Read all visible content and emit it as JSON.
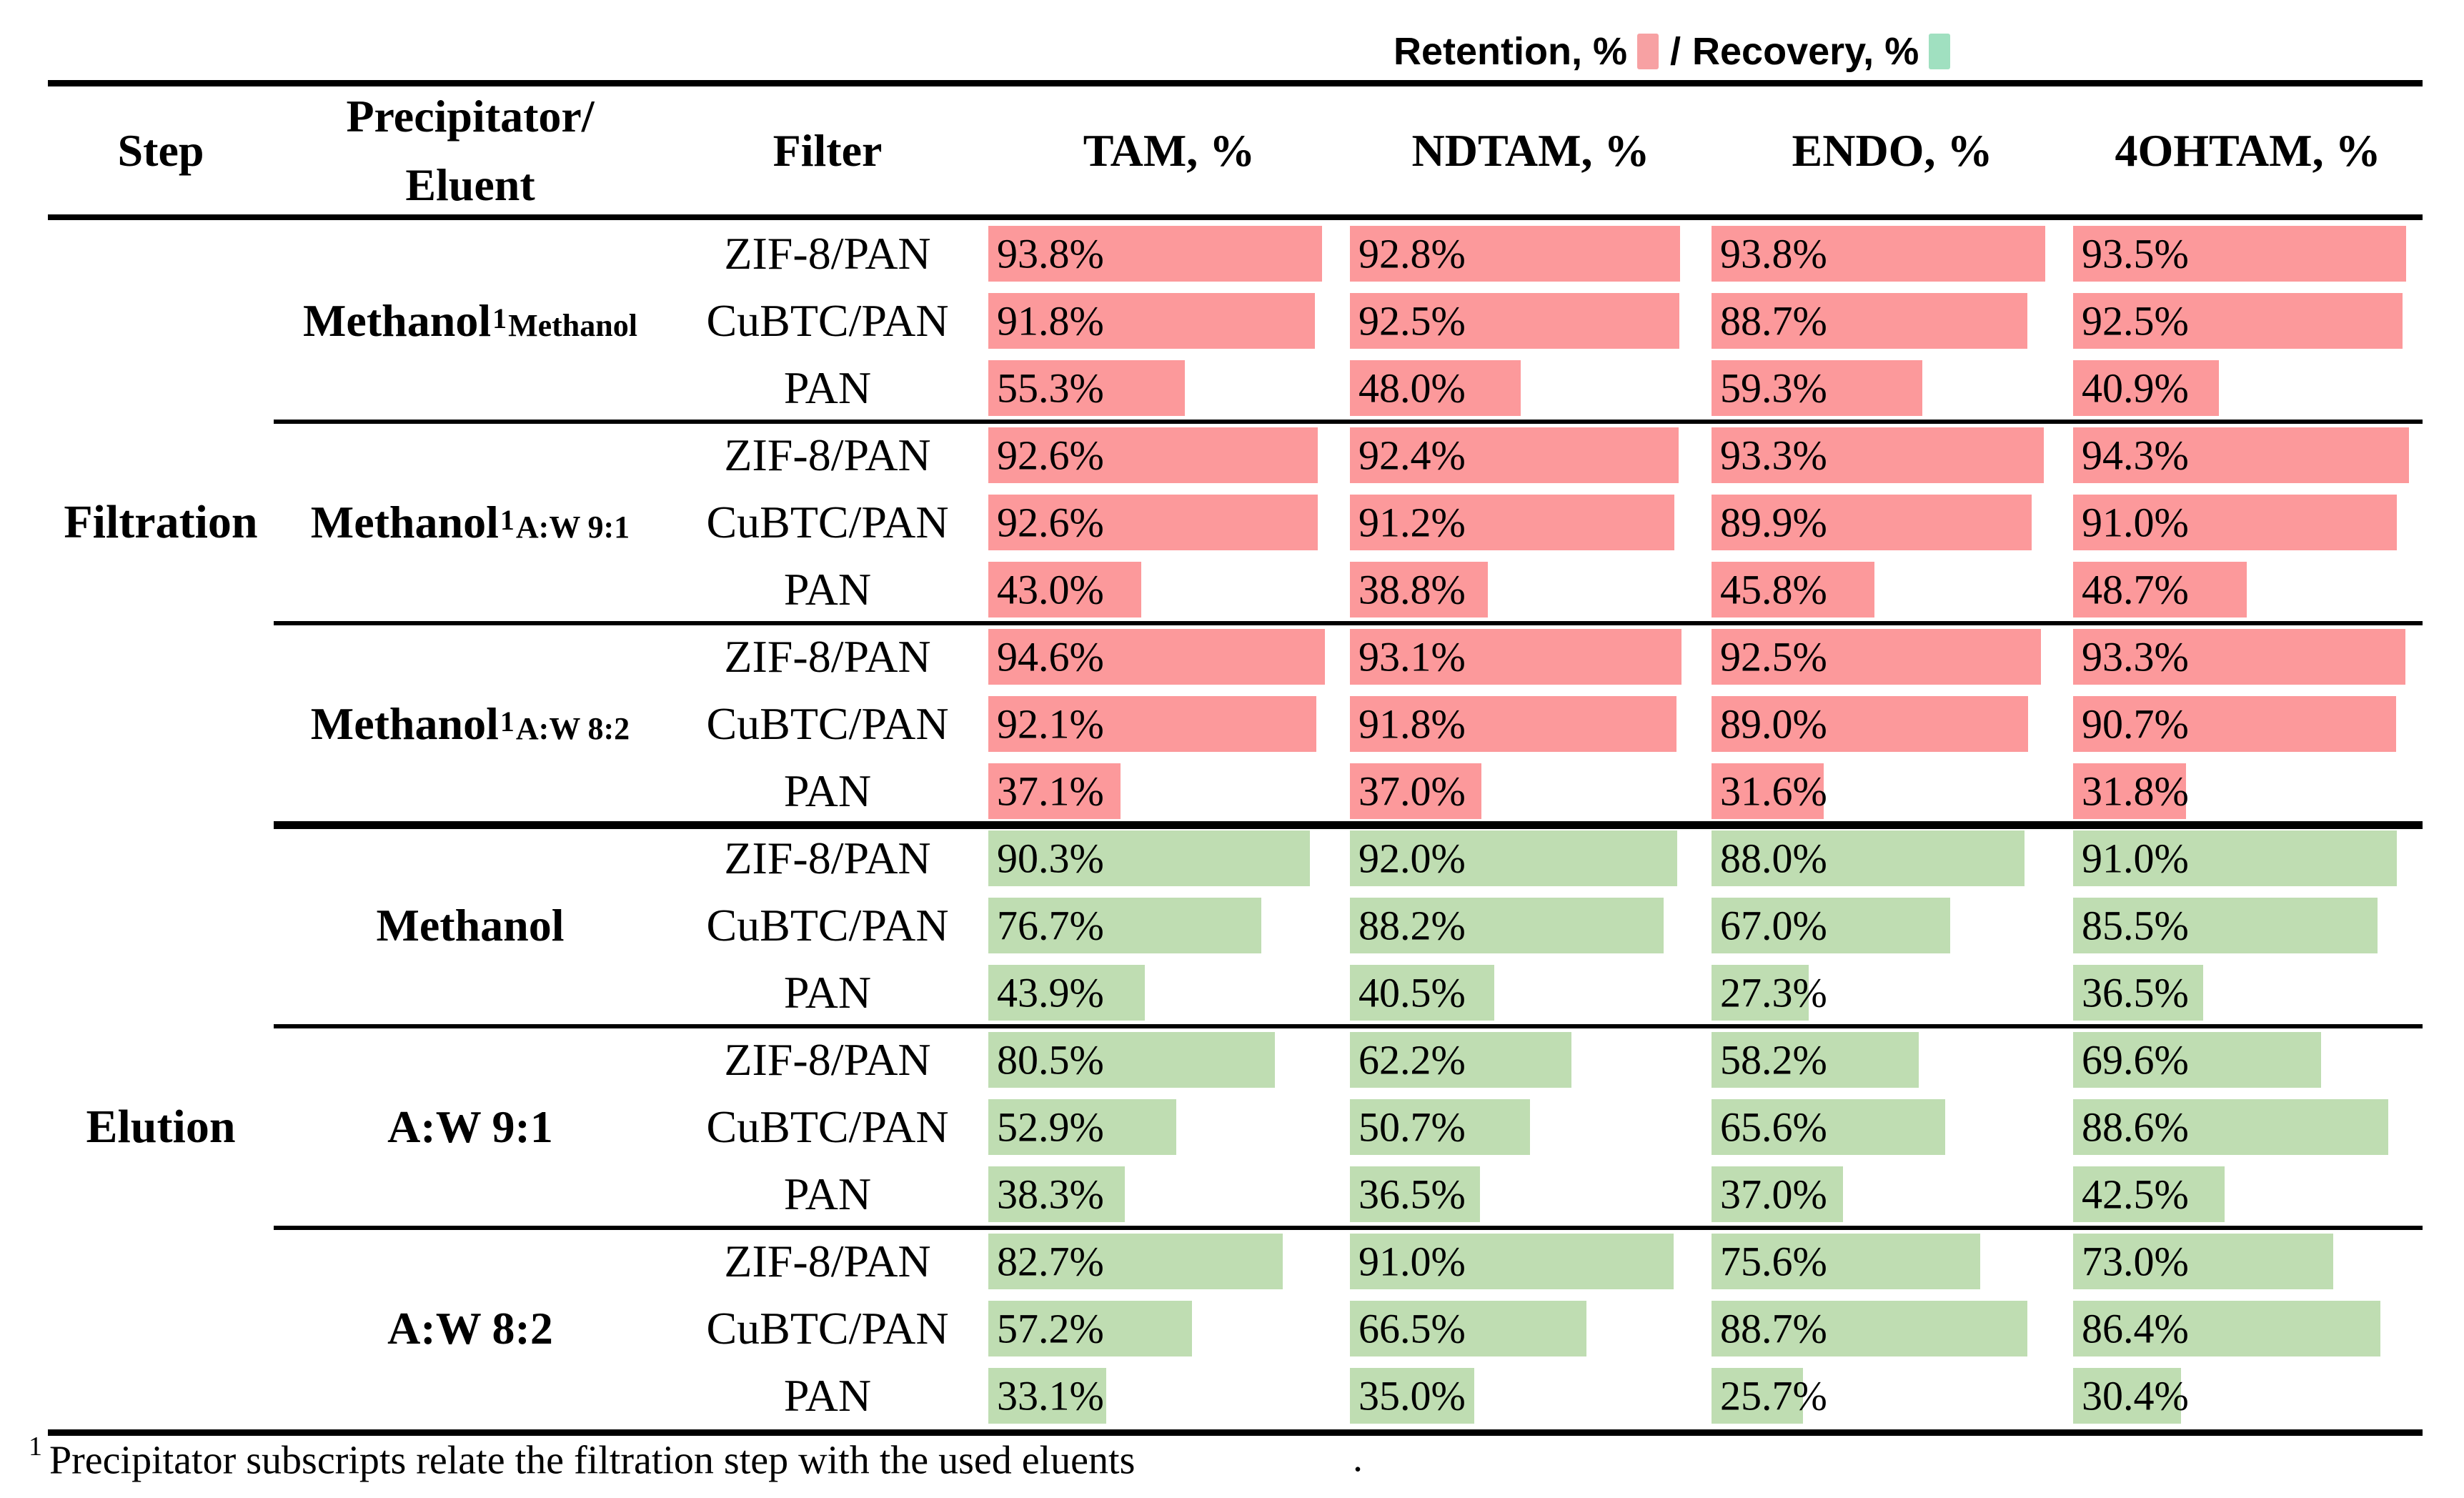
{
  "legend": {
    "retention_label": "Retention, %",
    "divider": "/",
    "recovery_label": "Recovery, %"
  },
  "colors": {
    "retention_bar": "#FC999B",
    "recovery_bar": "#BFDDB2",
    "legend_retention_swatch": "#F7A1A3",
    "legend_recovery_swatch": "#A0E0C0",
    "rule": "#000000"
  },
  "header_display": {
    "precipitator_line1": "Precipitator/",
    "precipitator_line2": "Eluent"
  },
  "footnote": {
    "marker": "1",
    "text": "Precipitator subscripts relate the filtration step with the used eluents",
    "trailing_mark": "."
  },
  "chart_data": {
    "type": "table",
    "title": "Retention, % / Recovery, %",
    "columns": [
      "Step",
      "Precipitator/Eluent",
      "Filter",
      "TAM, %",
      "NDTAM, %",
      "ENDO, %",
      "4OHTAM, %"
    ],
    "value_unit": "%",
    "bar_range": [
      0,
      100
    ],
    "sections": [
      {
        "step": "Filtration",
        "measure": "Retention, %",
        "bar_color": "#FC999B",
        "groups": [
          {
            "eluent": {
              "main": "Methanol",
              "sup": "1",
              "sub": "Methanol"
            },
            "rows": [
              {
                "filter": "ZIF-8/PAN",
                "values": [
                  93.8,
                  92.8,
                  93.8,
                  93.5
                ]
              },
              {
                "filter": "CuBTC/PAN",
                "values": [
                  91.8,
                  92.5,
                  88.7,
                  92.5
                ]
              },
              {
                "filter": "PAN",
                "values": [
                  55.3,
                  48.0,
                  59.3,
                  40.9
                ]
              }
            ]
          },
          {
            "eluent": {
              "main": "Methanol",
              "sup": "1",
              "sub": "A:W 9:1"
            },
            "rows": [
              {
                "filter": "ZIF-8/PAN",
                "values": [
                  92.6,
                  92.4,
                  93.3,
                  94.3
                ]
              },
              {
                "filter": "CuBTC/PAN",
                "values": [
                  92.6,
                  91.2,
                  89.9,
                  91.0
                ]
              },
              {
                "filter": "PAN",
                "values": [
                  43.0,
                  38.8,
                  45.8,
                  48.7
                ]
              }
            ]
          },
          {
            "eluent": {
              "main": "Methanol",
              "sup": "1",
              "sub": "A:W 8:2"
            },
            "rows": [
              {
                "filter": "ZIF-8/PAN",
                "values": [
                  94.6,
                  93.1,
                  92.5,
                  93.3
                ]
              },
              {
                "filter": "CuBTC/PAN",
                "values": [
                  92.1,
                  91.8,
                  89.0,
                  90.7
                ]
              },
              {
                "filter": "PAN",
                "values": [
                  37.1,
                  37.0,
                  31.6,
                  31.8
                ]
              }
            ]
          }
        ]
      },
      {
        "step": "Elution",
        "measure": "Recovery, %",
        "bar_color": "#BFDDB2",
        "groups": [
          {
            "eluent": {
              "main": "Methanol",
              "sup": "",
              "sub": ""
            },
            "rows": [
              {
                "filter": "ZIF-8/PAN",
                "values": [
                  90.3,
                  92.0,
                  88.0,
                  91.0
                ]
              },
              {
                "filter": "CuBTC/PAN",
                "values": [
                  76.7,
                  88.2,
                  67.0,
                  85.5
                ]
              },
              {
                "filter": "PAN",
                "values": [
                  43.9,
                  40.5,
                  27.3,
                  36.5
                ]
              }
            ]
          },
          {
            "eluent": {
              "main": "A:W 9:1",
              "sup": "",
              "sub": ""
            },
            "rows": [
              {
                "filter": "ZIF-8/PAN",
                "values": [
                  80.5,
                  62.2,
                  58.2,
                  69.6
                ]
              },
              {
                "filter": "CuBTC/PAN",
                "values": [
                  52.9,
                  50.7,
                  65.6,
                  88.6
                ]
              },
              {
                "filter": "PAN",
                "values": [
                  38.3,
                  36.5,
                  37.0,
                  42.5
                ]
              }
            ]
          },
          {
            "eluent": {
              "main": "A:W 8:2",
              "sup": "",
              "sub": ""
            },
            "rows": [
              {
                "filter": "ZIF-8/PAN",
                "values": [
                  82.7,
                  91.0,
                  75.6,
                  73.0
                ]
              },
              {
                "filter": "CuBTC/PAN",
                "values": [
                  57.2,
                  66.5,
                  88.7,
                  86.4
                ]
              },
              {
                "filter": "PAN",
                "values": [
                  33.1,
                  35.0,
                  25.7,
                  30.4
                ]
              }
            ]
          }
        ]
      }
    ]
  }
}
